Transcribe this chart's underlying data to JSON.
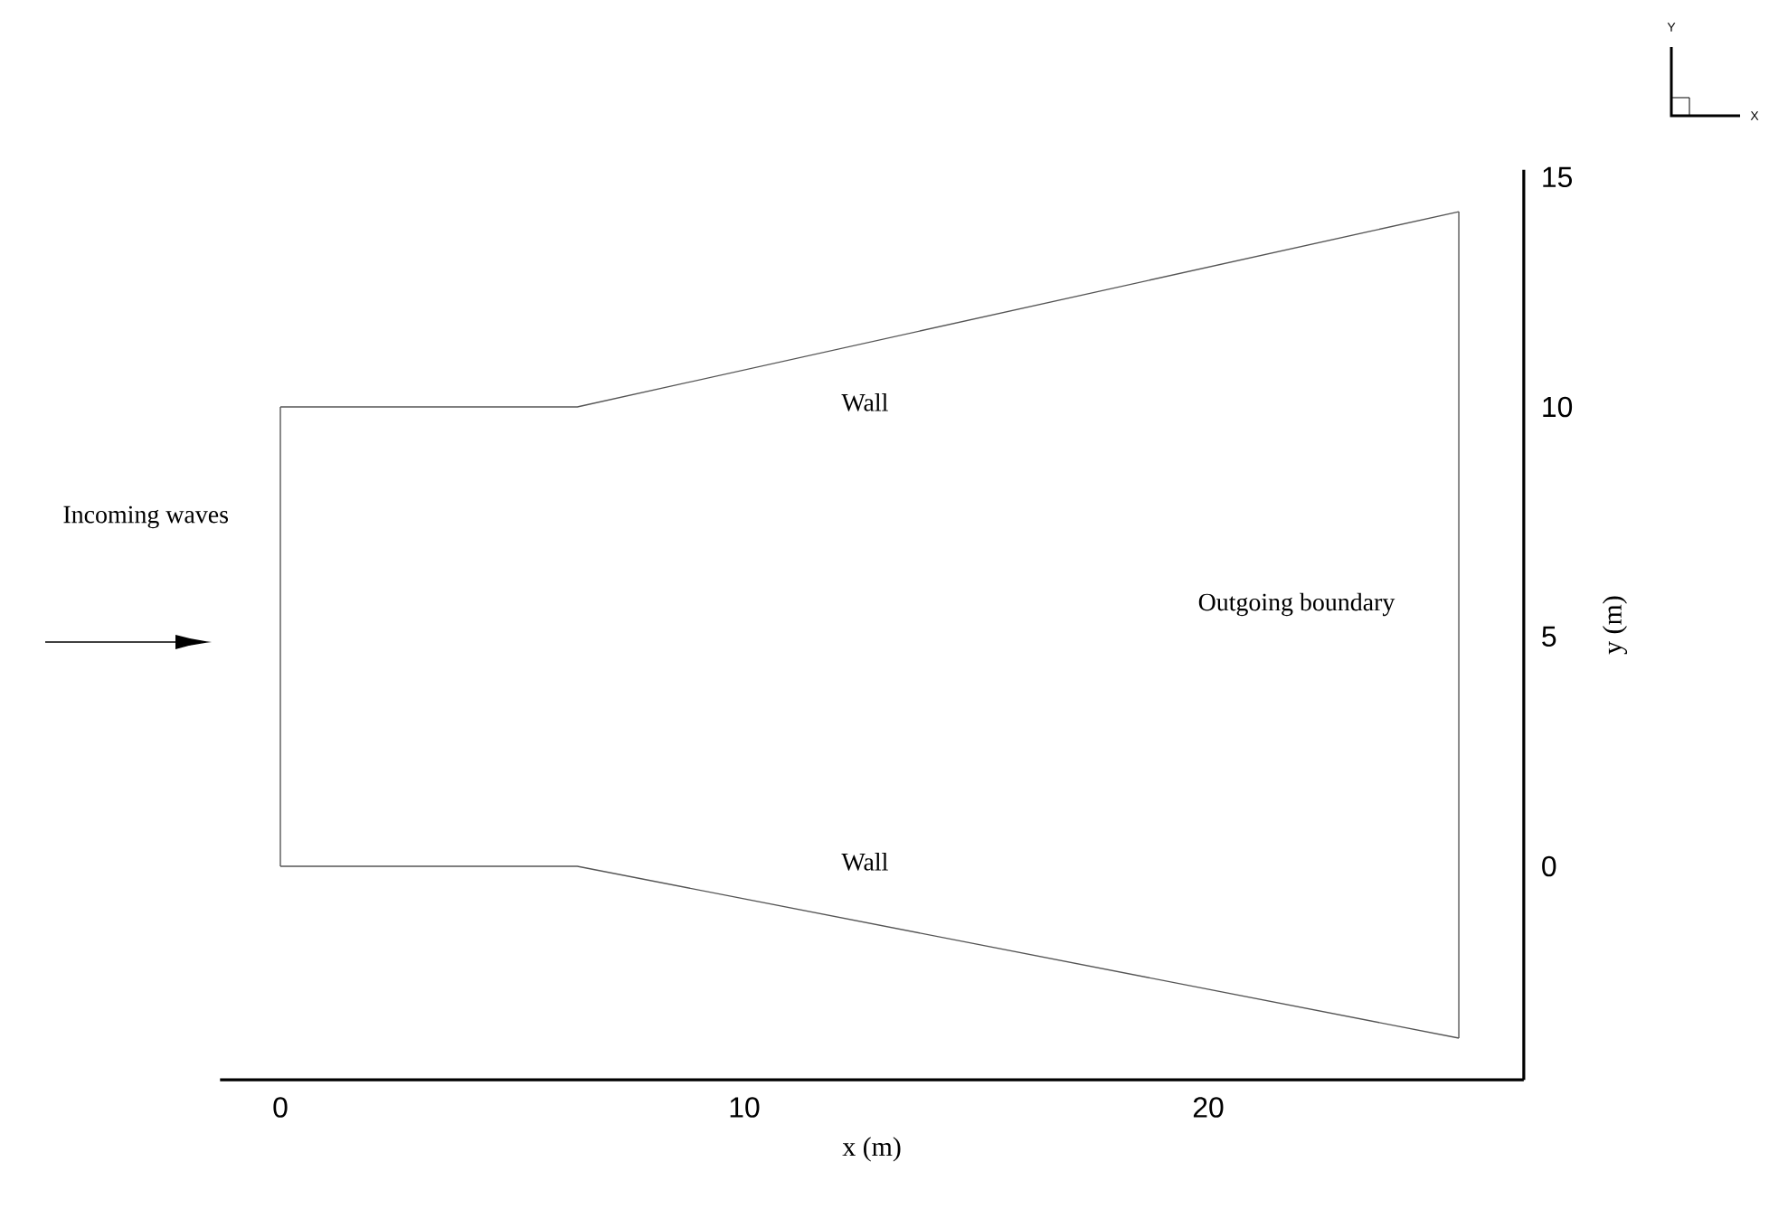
{
  "chart_data": {
    "type": "line",
    "xlabel": "x (m)",
    "ylabel": "y (m)",
    "series": [
      {
        "color": "#555555",
        "x": [
          0,
          6.4,
          25.4
        ],
        "values": [
          10,
          10,
          14.25
        ]
      },
      {
        "color": "#555555",
        "x": [
          0,
          6.4,
          25.4
        ],
        "values": [
          0,
          0,
          -3.74
        ]
      },
      {
        "color": "#555555",
        "x": [
          0,
          0
        ],
        "values": [
          0,
          10
        ]
      },
      {
        "color": "#555555",
        "x": [
          25.4,
          25.4
        ],
        "values": [
          -3.74,
          14.25
        ]
      }
    ],
    "xlim": [
      -1.3,
      26.8
    ],
    "ylim": [
      -4.65,
      15.16
    ],
    "xticks": [
      0,
      10,
      20
    ],
    "yticks": [
      0,
      5,
      10,
      15
    ],
    "marker": "none",
    "line_style": "solid",
    "annotations": [
      "Incoming waves",
      "Wall",
      "Wall",
      "Outgoing boundary",
      "Y",
      "X"
    ]
  }
}
